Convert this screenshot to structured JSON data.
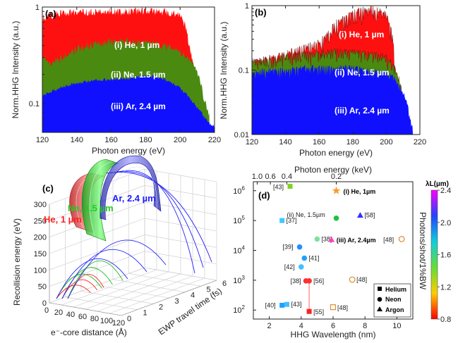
{
  "chart_data": [
    {
      "panel": "(a)",
      "type": "area",
      "xlabel": "Photon energy (eV)",
      "ylabel": "Norm.HHG Intensity (a.u.)",
      "xlim": [
        120,
        220
      ],
      "ylim": [
        0.05,
        1
      ],
      "yscale": "log",
      "xticks": [
        "120",
        "140",
        "160",
        "180",
        "200",
        "220"
      ],
      "yticks": [
        "0.1",
        "1"
      ],
      "series": [
        {
          "name": "(i) He, 1 µm",
          "color": "#ff1010",
          "x": [
            120,
            124,
            130,
            140,
            150,
            160,
            170,
            180,
            190,
            195,
            200,
            203,
            205,
            208,
            210,
            212,
            213
          ],
          "y": [
            0.85,
            0.9,
            0.95,
            0.97,
            0.98,
            0.99,
            0.99,
            0.99,
            0.98,
            0.95,
            0.88,
            0.7,
            0.45,
            0.25,
            0.12,
            0.08,
            0.07
          ]
        },
        {
          "name": "(ii) Ne, 1.5 µm",
          "color": "#4a8a10",
          "x": [
            120,
            125,
            130,
            135,
            140,
            150,
            160,
            170,
            180,
            190,
            200,
            205,
            208,
            211,
            214,
            216,
            217
          ],
          "y": [
            0.33,
            0.28,
            0.32,
            0.36,
            0.4,
            0.45,
            0.48,
            0.48,
            0.46,
            0.44,
            0.38,
            0.32,
            0.27,
            0.2,
            0.12,
            0.09,
            0.08
          ]
        },
        {
          "name": "(iii) Ar, 2.4 µm",
          "color": "#1010ff",
          "x": [
            120,
            130,
            140,
            150,
            160,
            170,
            180,
            185,
            190,
            195,
            200,
            205,
            210,
            214,
            218,
            220
          ],
          "y": [
            0.125,
            0.15,
            0.17,
            0.18,
            0.185,
            0.19,
            0.2,
            0.2,
            0.19,
            0.17,
            0.15,
            0.12,
            0.095,
            0.075,
            0.062,
            0.06
          ]
        }
      ]
    },
    {
      "panel": "(b)",
      "type": "area",
      "xlabel": "Photon energy (eV)",
      "ylabel": "Norm.HHG Intensity (a.u.)",
      "xlim": [
        120,
        220
      ],
      "ylim": [
        0.01,
        1
      ],
      "yscale": "log",
      "xticks": [
        "120",
        "140",
        "160",
        "180",
        "200",
        "220"
      ],
      "yticks": [
        "0.01",
        "0.1",
        "1"
      ],
      "series": [
        {
          "name": "(i) He, 1 µm",
          "color": "#ff1010",
          "x": [
            120,
            130,
            140,
            150,
            160,
            165,
            170,
            175,
            180,
            185,
            190,
            195,
            200,
            203,
            205,
            206,
            207
          ],
          "y": [
            0.15,
            0.17,
            0.2,
            0.25,
            0.3,
            0.4,
            0.6,
            0.7,
            0.85,
            0.95,
            1.0,
            0.95,
            0.8,
            0.45,
            0.15,
            0.04,
            0.02
          ]
        },
        {
          "name": "(ii) Ne, 1.5 µm",
          "color": "#4a8a10",
          "x": [
            120,
            130,
            140,
            150,
            160,
            170,
            180,
            190,
            200,
            205,
            210,
            212,
            213
          ],
          "y": [
            0.15,
            0.16,
            0.18,
            0.2,
            0.2,
            0.22,
            0.21,
            0.2,
            0.18,
            0.12,
            0.04,
            0.015,
            0.012
          ]
        },
        {
          "name": "(iii) Ar, 2.4 µm",
          "color": "#1010ff",
          "x": [
            120,
            130,
            140,
            150,
            160,
            170,
            180,
            190,
            200,
            205,
            210,
            214,
            216
          ],
          "y": [
            0.1,
            0.11,
            0.11,
            0.12,
            0.12,
            0.12,
            0.12,
            0.11,
            0.1,
            0.08,
            0.05,
            0.02,
            0.012
          ]
        }
      ]
    },
    {
      "panel": "(c)",
      "type": "scatter",
      "zlabel": "Recollision energy (eV)",
      "xlabel": "e⁻-core distance (Å)",
      "ylabel": "EWP travel time (fs)",
      "zticks": [
        "0",
        "50",
        "100",
        "150",
        "200",
        "250",
        "300"
      ],
      "xticks": [
        "0",
        "20",
        "40",
        "60",
        "80",
        "100",
        "120"
      ],
      "yticks": [
        "0",
        "1",
        "2",
        "3",
        "4",
        "5",
        "6"
      ],
      "series": [
        {
          "name": "He, 1 µm",
          "color": "#ff2020"
        },
        {
          "name": "Ne, 1.5 µm",
          "color": "#22cc22"
        },
        {
          "name": "Ar, 2.4 µm",
          "color": "#2020ff"
        }
      ]
    },
    {
      "panel": "(d)",
      "type": "scatter",
      "xlabel": "HHG Wavelength (nm)",
      "ylabel": "Photons/shot/1%BW",
      "top_xlabel": "Photon energy (keV)",
      "xlim": [
        1,
        11
      ],
      "ylim": [
        50,
        2000000
      ],
      "yscale": "log",
      "xticks": [
        "2",
        "4",
        "6",
        "8",
        "10"
      ],
      "top_xticks": [
        "1.0",
        "0.6",
        "0.4",
        "0.2"
      ],
      "yticks_exp": [
        "2",
        "3",
        "4",
        "5",
        "6"
      ],
      "colorbar_label": "λL(µm)",
      "colorbar_ticks": [
        "0.8",
        "1.2",
        "1.6",
        "2.0",
        "2.4"
      ],
      "legend_title": "",
      "legend": [
        "Helium",
        "Neon",
        "Argon"
      ],
      "points": [
        {
          "label": "[43]",
          "x": 3.3,
          "y": 1400000,
          "marker": "square",
          "color": "#7ed321"
        },
        {
          "label": "(i) He, 1µm",
          "x": 6.2,
          "y": 1000000,
          "marker": "star",
          "color": "#ff9a2a"
        },
        {
          "label": "(ii) Ne, 1.5µm",
          "x": 6.2,
          "y": 120000,
          "marker": "circle",
          "color": "#22c040"
        },
        {
          "label": "[58]",
          "x": 7.7,
          "y": 150000,
          "marker": "triangle",
          "color": "#3030ff"
        },
        {
          "label": "[37]",
          "x": 2.8,
          "y": 100000,
          "marker": "square",
          "color": "#40c8ff"
        },
        {
          "label": "[48]",
          "x": 10.3,
          "y": 24000,
          "marker": "circle-open",
          "color": "#e08a30"
        },
        {
          "label": "[38]",
          "x": 5.0,
          "y": 24000,
          "marker": "circle",
          "color": "#80e0a0"
        },
        {
          "label": "(iii) Ar, 2.4µm",
          "x": 5.9,
          "y": 23000,
          "marker": "triangle",
          "color": "#ff40c0"
        },
        {
          "label": "[39]",
          "x": 3.9,
          "y": 13000,
          "marker": "circle",
          "color": "#2090ff"
        },
        {
          "label": "[41]",
          "x": 4.2,
          "y": 5500,
          "marker": "circle",
          "color": "#20a0ff"
        },
        {
          "label": "[42]",
          "x": 4.0,
          "y": 2800,
          "marker": "circle",
          "color": "#40c0ff"
        },
        {
          "label": "[38]",
          "x": 4.3,
          "y": 950,
          "marker": "circle",
          "color": "#ff3030"
        },
        {
          "label": "[56]",
          "x": 4.5,
          "y": 950,
          "marker": "circle",
          "color": "#ff3030"
        },
        {
          "label": "[48]",
          "x": 7.2,
          "y": 1050,
          "marker": "circle-open",
          "color": "#e08a30"
        },
        {
          "label": "[40]",
          "x": 2.8,
          "y": 145,
          "marker": "square",
          "color": "#20a0ff"
        },
        {
          "label": "[43]",
          "x": 3.1,
          "y": 155,
          "marker": "square",
          "color": "#40c0ff"
        },
        {
          "label": "[55]",
          "x": 4.5,
          "y": 90,
          "marker": "square",
          "color": "#ff2020"
        },
        {
          "label": "[48]",
          "x": 6.0,
          "y": 125,
          "marker": "square-open",
          "color": "#e08a30"
        }
      ]
    }
  ]
}
